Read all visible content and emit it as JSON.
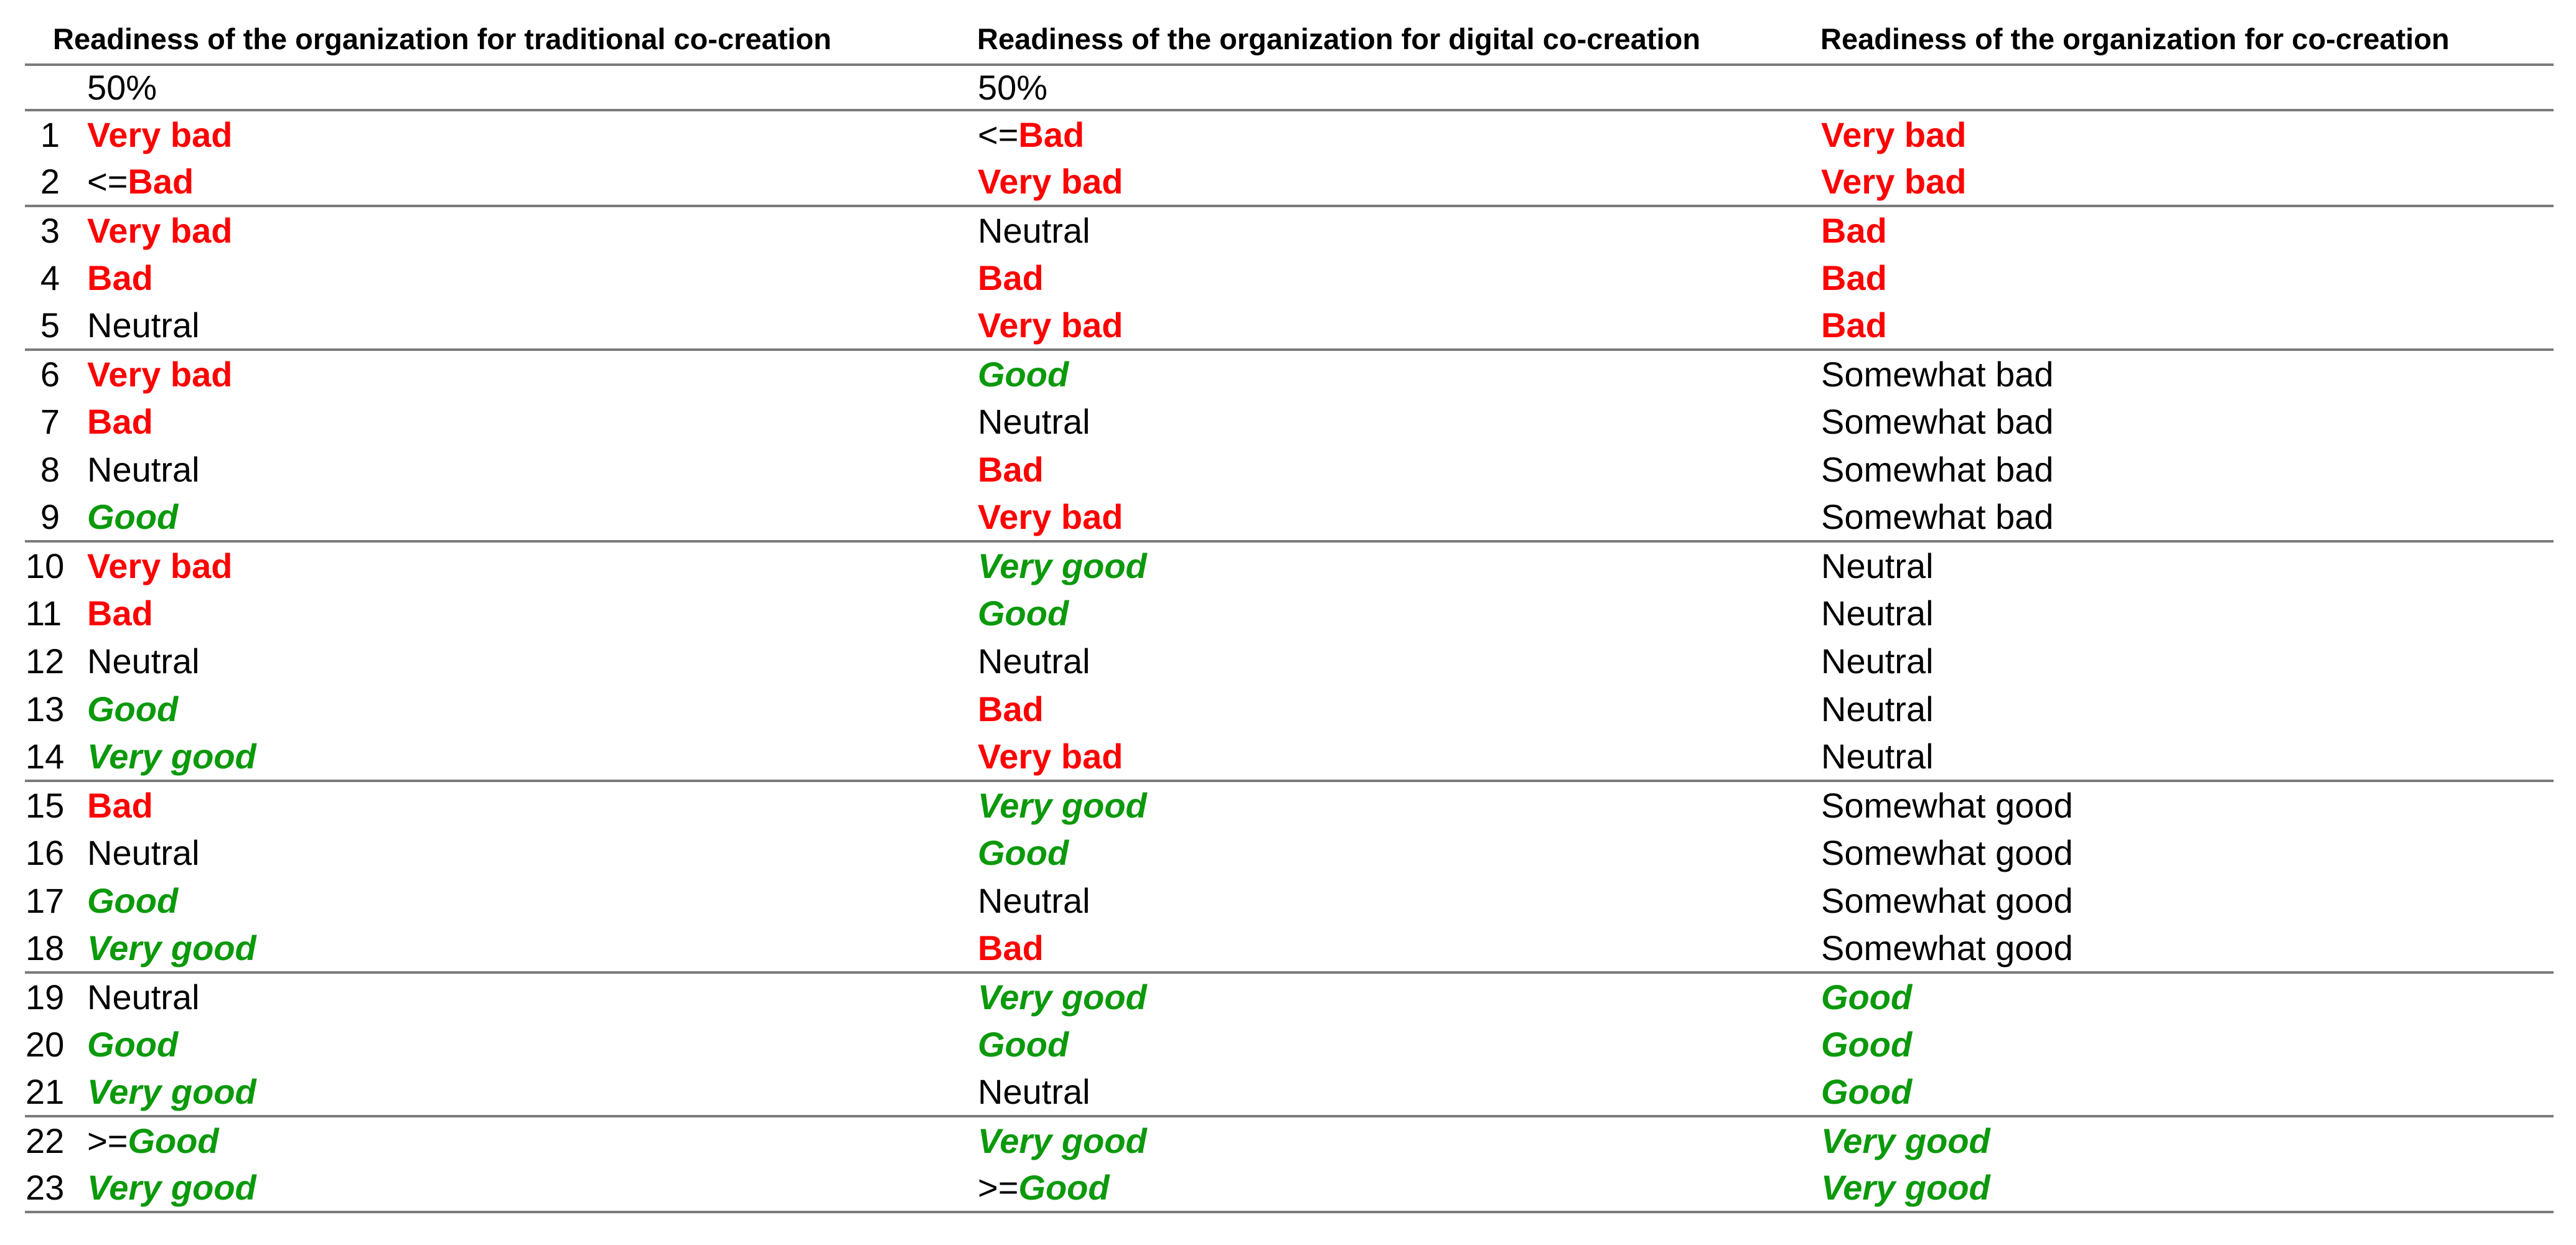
{
  "colors": {
    "bad_red": "#ff0000",
    "good_green": "#0b990b",
    "divider_gray": "#7b7b7b",
    "text_black": "#000000",
    "background": "#ffffff"
  },
  "headers": {
    "traditional": "Readiness of the organization for traditional co-creation",
    "digital": "Readiness of the organization for digital co-creation",
    "cocreation": "Readiness of the organization for co-creation"
  },
  "threshold_row": {
    "traditional": "50%",
    "digital": "50%",
    "cocreation": ""
  },
  "rows": [
    {
      "n": "1",
      "traditional": {
        "op": "",
        "text": "Very bad",
        "tone": "bad"
      },
      "digital": {
        "op": "<=",
        "text": "Bad",
        "tone": "bad"
      },
      "cocreation": {
        "op": "",
        "text": "Very bad",
        "tone": "bad"
      },
      "group_end": false
    },
    {
      "n": "2",
      "traditional": {
        "op": "<=",
        "text": "Bad",
        "tone": "bad"
      },
      "digital": {
        "op": "",
        "text": "Very bad",
        "tone": "bad"
      },
      "cocreation": {
        "op": "",
        "text": "Very bad",
        "tone": "bad"
      },
      "group_end": true
    },
    {
      "n": "3",
      "traditional": {
        "op": "",
        "text": "Very bad",
        "tone": "bad"
      },
      "digital": {
        "op": "",
        "text": "Neutral",
        "tone": "neutral"
      },
      "cocreation": {
        "op": "",
        "text": "Bad",
        "tone": "bad"
      },
      "group_end": false
    },
    {
      "n": "4",
      "traditional": {
        "op": "",
        "text": "Bad",
        "tone": "bad"
      },
      "digital": {
        "op": "",
        "text": "Bad",
        "tone": "bad"
      },
      "cocreation": {
        "op": "",
        "text": "Bad",
        "tone": "bad"
      },
      "group_end": false
    },
    {
      "n": "5",
      "traditional": {
        "op": "",
        "text": "Neutral",
        "tone": "neutral"
      },
      "digital": {
        "op": "",
        "text": "Very bad",
        "tone": "bad"
      },
      "cocreation": {
        "op": "",
        "text": "Bad",
        "tone": "bad"
      },
      "group_end": true
    },
    {
      "n": "6",
      "traditional": {
        "op": "",
        "text": "Very bad",
        "tone": "bad"
      },
      "digital": {
        "op": "",
        "text": "Good",
        "tone": "good"
      },
      "cocreation": {
        "op": "",
        "text": "Somewhat bad",
        "tone": "neutral"
      },
      "group_end": false
    },
    {
      "n": "7",
      "traditional": {
        "op": "",
        "text": "Bad",
        "tone": "bad"
      },
      "digital": {
        "op": "",
        "text": "Neutral",
        "tone": "neutral"
      },
      "cocreation": {
        "op": "",
        "text": "Somewhat bad",
        "tone": "neutral"
      },
      "group_end": false
    },
    {
      "n": "8",
      "traditional": {
        "op": "",
        "text": "Neutral",
        "tone": "neutral"
      },
      "digital": {
        "op": "",
        "text": "Bad",
        "tone": "bad"
      },
      "cocreation": {
        "op": "",
        "text": "Somewhat bad",
        "tone": "neutral"
      },
      "group_end": false
    },
    {
      "n": "9",
      "traditional": {
        "op": "",
        "text": "Good",
        "tone": "good"
      },
      "digital": {
        "op": "",
        "text": "Very bad",
        "tone": "bad"
      },
      "cocreation": {
        "op": "",
        "text": "Somewhat bad",
        "tone": "neutral"
      },
      "group_end": true
    },
    {
      "n": "10",
      "traditional": {
        "op": "",
        "text": "Very bad",
        "tone": "bad"
      },
      "digital": {
        "op": "",
        "text": "Very good",
        "tone": "good"
      },
      "cocreation": {
        "op": "",
        "text": "Neutral",
        "tone": "neutral"
      },
      "group_end": false
    },
    {
      "n": "11",
      "traditional": {
        "op": "",
        "text": "Bad",
        "tone": "bad"
      },
      "digital": {
        "op": "",
        "text": "Good",
        "tone": "good"
      },
      "cocreation": {
        "op": "",
        "text": "Neutral",
        "tone": "neutral"
      },
      "group_end": false
    },
    {
      "n": "12",
      "traditional": {
        "op": "",
        "text": "Neutral",
        "tone": "neutral"
      },
      "digital": {
        "op": "",
        "text": "Neutral",
        "tone": "neutral"
      },
      "cocreation": {
        "op": "",
        "text": "Neutral",
        "tone": "neutral"
      },
      "group_end": false
    },
    {
      "n": "13",
      "traditional": {
        "op": "",
        "text": "Good",
        "tone": "good"
      },
      "digital": {
        "op": "",
        "text": "Bad",
        "tone": "bad"
      },
      "cocreation": {
        "op": "",
        "text": "Neutral",
        "tone": "neutral"
      },
      "group_end": false
    },
    {
      "n": "14",
      "traditional": {
        "op": "",
        "text": "Very good",
        "tone": "good"
      },
      "digital": {
        "op": "",
        "text": "Very bad",
        "tone": "bad"
      },
      "cocreation": {
        "op": "",
        "text": "Neutral",
        "tone": "neutral"
      },
      "group_end": true
    },
    {
      "n": "15",
      "traditional": {
        "op": "",
        "text": "Bad",
        "tone": "bad"
      },
      "digital": {
        "op": "",
        "text": "Very good",
        "tone": "good"
      },
      "cocreation": {
        "op": "",
        "text": "Somewhat good",
        "tone": "neutral"
      },
      "group_end": false
    },
    {
      "n": "16",
      "traditional": {
        "op": "",
        "text": "Neutral",
        "tone": "neutral"
      },
      "digital": {
        "op": "",
        "text": "Good",
        "tone": "good"
      },
      "cocreation": {
        "op": "",
        "text": "Somewhat good",
        "tone": "neutral"
      },
      "group_end": false
    },
    {
      "n": "17",
      "traditional": {
        "op": "",
        "text": "Good",
        "tone": "good"
      },
      "digital": {
        "op": "",
        "text": "Neutral",
        "tone": "neutral"
      },
      "cocreation": {
        "op": "",
        "text": "Somewhat good",
        "tone": "neutral"
      },
      "group_end": false
    },
    {
      "n": "18",
      "traditional": {
        "op": "",
        "text": "Very good",
        "tone": "good"
      },
      "digital": {
        "op": "",
        "text": "Bad",
        "tone": "bad"
      },
      "cocreation": {
        "op": "",
        "text": "Somewhat good",
        "tone": "neutral"
      },
      "group_end": true
    },
    {
      "n": "19",
      "traditional": {
        "op": "",
        "text": "Neutral",
        "tone": "neutral"
      },
      "digital": {
        "op": "",
        "text": "Very good",
        "tone": "good"
      },
      "cocreation": {
        "op": "",
        "text": "Good",
        "tone": "good"
      },
      "group_end": false
    },
    {
      "n": "20",
      "traditional": {
        "op": "",
        "text": "Good",
        "tone": "good"
      },
      "digital": {
        "op": "",
        "text": "Good",
        "tone": "good"
      },
      "cocreation": {
        "op": "",
        "text": "Good",
        "tone": "good"
      },
      "group_end": false
    },
    {
      "n": "21",
      "traditional": {
        "op": "",
        "text": "Very good",
        "tone": "good"
      },
      "digital": {
        "op": "",
        "text": "Neutral",
        "tone": "neutral"
      },
      "cocreation": {
        "op": "",
        "text": "Good",
        "tone": "good"
      },
      "group_end": true
    },
    {
      "n": "22",
      "traditional": {
        "op": ">=",
        "text": "Good",
        "tone": "good"
      },
      "digital": {
        "op": "",
        "text": "Very good",
        "tone": "good"
      },
      "cocreation": {
        "op": "",
        "text": "Very good",
        "tone": "good"
      },
      "group_end": false
    },
    {
      "n": "23",
      "traditional": {
        "op": "",
        "text": "Very good",
        "tone": "good"
      },
      "digital": {
        "op": ">=",
        "text": "Good",
        "tone": "good"
      },
      "cocreation": {
        "op": "",
        "text": "Very good",
        "tone": "good"
      },
      "group_end": true
    }
  ],
  "chart_data": {
    "type": "table",
    "title": "Readiness of the organization for co-creation — rule table",
    "columns": [
      "#",
      "Readiness of the organization for traditional co-creation",
      "Readiness of the organization for digital co-creation",
      "Readiness of the organization for co-creation"
    ],
    "threshold_row": [
      "",
      "50%",
      "50%",
      ""
    ],
    "rows": [
      [
        1,
        "Very bad",
        "<=Bad",
        "Very bad"
      ],
      [
        2,
        "<=Bad",
        "Very bad",
        "Very bad"
      ],
      [
        3,
        "Very bad",
        "Neutral",
        "Bad"
      ],
      [
        4,
        "Bad",
        "Bad",
        "Bad"
      ],
      [
        5,
        "Neutral",
        "Very bad",
        "Bad"
      ],
      [
        6,
        "Very bad",
        "Good",
        "Somewhat bad"
      ],
      [
        7,
        "Bad",
        "Neutral",
        "Somewhat bad"
      ],
      [
        8,
        "Neutral",
        "Bad",
        "Somewhat bad"
      ],
      [
        9,
        "Good",
        "Very bad",
        "Somewhat bad"
      ],
      [
        10,
        "Very bad",
        "Very good",
        "Neutral"
      ],
      [
        11,
        "Bad",
        "Good",
        "Neutral"
      ],
      [
        12,
        "Neutral",
        "Neutral",
        "Neutral"
      ],
      [
        13,
        "Good",
        "Bad",
        "Neutral"
      ],
      [
        14,
        "Very good",
        "Very bad",
        "Neutral"
      ],
      [
        15,
        "Bad",
        "Very good",
        "Somewhat good"
      ],
      [
        16,
        "Neutral",
        "Good",
        "Somewhat good"
      ],
      [
        17,
        "Good",
        "Neutral",
        "Somewhat good"
      ],
      [
        18,
        "Very good",
        "Bad",
        "Somewhat good"
      ],
      [
        19,
        "Neutral",
        "Very good",
        "Good"
      ],
      [
        20,
        "Good",
        "Good",
        "Good"
      ],
      [
        21,
        "Very good",
        "Neutral",
        "Good"
      ],
      [
        22,
        ">=Good",
        "Very good",
        "Very good"
      ],
      [
        23,
        "Very good",
        ">=Good",
        "Very good"
      ]
    ],
    "group_separators_after_rows": [
      2,
      5,
      9,
      14,
      18,
      21,
      23
    ],
    "legend": {
      "bad_values_style": "bold red",
      "good_values_style": "bold italic green",
      "neutral_values_style": "regular black"
    },
    "grid": "horizontal separators only"
  }
}
